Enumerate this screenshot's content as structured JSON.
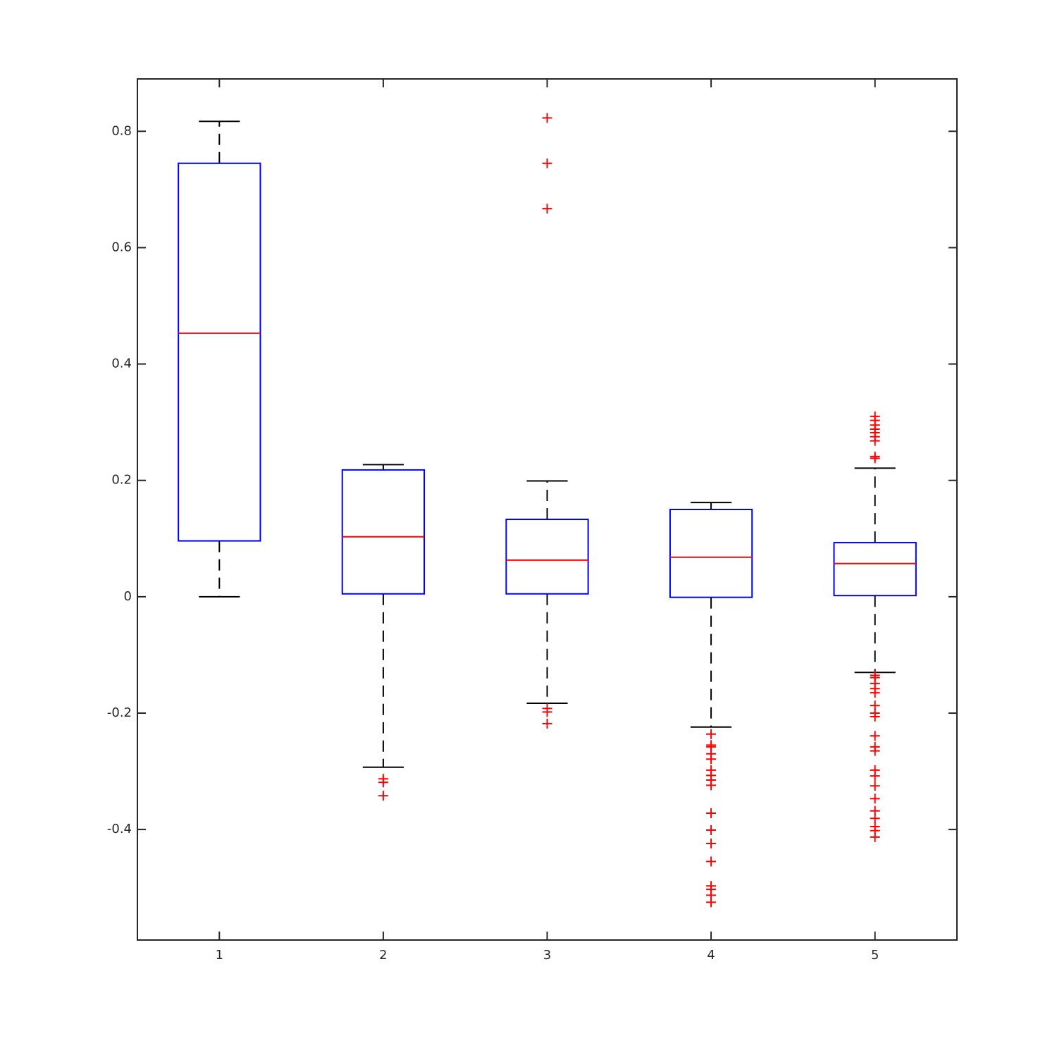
{
  "chart_data": {
    "type": "box",
    "categories": [
      "1",
      "2",
      "3",
      "4",
      "5"
    ],
    "boxes": [
      {
        "whisker_low": 0,
        "q1": 0.096,
        "median": 0.453,
        "q3": 0.745,
        "whisker_high": 0.817,
        "outliers": []
      },
      {
        "whisker_low": -0.293,
        "q1": 0.005,
        "median": 0.103,
        "q3": 0.218,
        "whisker_high": 0.227,
        "outliers": [
          -0.313,
          -0.319,
          -0.342
        ]
      },
      {
        "whisker_low": -0.183,
        "q1": 0.005,
        "median": 0.063,
        "q3": 0.133,
        "whisker_high": 0.199,
        "outliers": [
          0.823,
          0.745,
          0.667,
          -0.192,
          -0.198,
          -0.218
        ]
      },
      {
        "whisker_low": -0.224,
        "q1": -0.001,
        "median": 0.068,
        "q3": 0.15,
        "whisker_high": 0.162,
        "outliers": [
          -0.236,
          -0.255,
          -0.258,
          -0.27,
          -0.279,
          -0.298,
          -0.307,
          -0.315,
          -0.324,
          -0.372,
          -0.401,
          -0.424,
          -0.455,
          -0.497,
          -0.503,
          -0.513,
          -0.525
        ]
      },
      {
        "whisker_low": -0.13,
        "q1": 0.002,
        "median": 0.057,
        "q3": 0.093,
        "whisker_high": 0.221,
        "outliers": [
          0.31,
          0.303,
          0.295,
          0.288,
          0.282,
          0.275,
          0.268,
          0.241,
          0.238,
          -0.135,
          -0.139,
          -0.149,
          -0.158,
          -0.165,
          -0.187,
          -0.2,
          -0.206,
          -0.239,
          -0.258,
          -0.265,
          -0.298,
          -0.308,
          -0.325,
          -0.347,
          -0.368,
          -0.381,
          -0.395,
          -0.402,
          -0.413
        ]
      }
    ],
    "box_color": "#0000ff",
    "median_color": "#ff0000",
    "whisker_color": "#000000",
    "outlier_color": "#ff0000",
    "ylim": [
      -0.59,
      0.89
    ],
    "yticks": [
      -0.4,
      -0.2,
      0,
      0.2,
      0.4,
      0.6,
      0.8
    ]
  }
}
